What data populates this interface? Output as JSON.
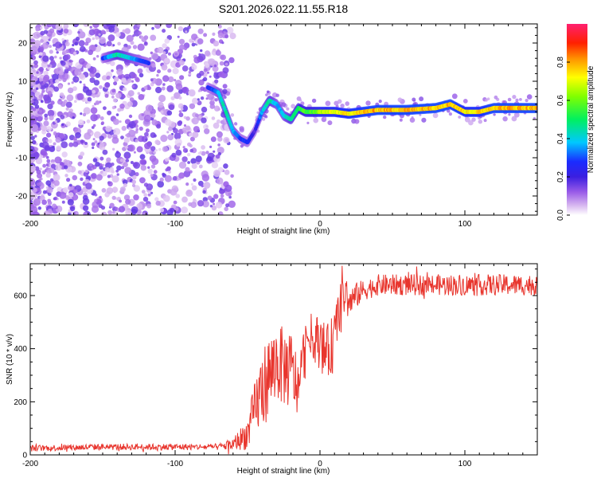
{
  "title": "S201.2026.022.11.55.R18",
  "chart_data": [
    {
      "type": "heatmap",
      "xlabel": "Height of straight line (km)",
      "ylabel": "Frequency (Hz)",
      "xlim": [
        -200,
        150
      ],
      "ylim": [
        -25,
        25
      ],
      "xticks": [
        -200,
        -100,
        0,
        100
      ],
      "xtick_labels": [
        "-200",
        "-100",
        "0",
        "100"
      ],
      "yticks": [
        -20,
        -10,
        0,
        10,
        20
      ],
      "ytick_labels": [
        "-20",
        "-10",
        "0",
        "10",
        "20"
      ],
      "colorbar": {
        "label": "Normalized spectral amplitude",
        "range": [
          0,
          1
        ],
        "ticks": [
          0.0,
          0.2,
          0.4,
          0.6,
          0.8
        ],
        "tick_labels": [
          "0.0",
          "0.2",
          "0.4",
          "0.6",
          "0.8"
        ]
      },
      "ridge": {
        "x": [
          -150,
          -140,
          -130,
          -120,
          -75,
          -70,
          -65,
          -60,
          -55,
          -50,
          -45,
          -40,
          -35,
          -30,
          -25,
          -20,
          -15,
          -10,
          -5,
          0,
          10,
          20,
          40,
          60,
          80,
          90,
          100,
          110,
          120,
          150
        ],
        "y": [
          16,
          17,
          16,
          15,
          8,
          7,
          2,
          -3,
          -5,
          -6,
          -3,
          2,
          5,
          4,
          1,
          0,
          3,
          2,
          2,
          2,
          2,
          1.5,
          2.5,
          2.5,
          3,
          4,
          2,
          2,
          3,
          3
        ],
        "amplitude": [
          0.3,
          0.5,
          0.4,
          0.3,
          0.3,
          0.4,
          0.5,
          0.4,
          0.3,
          0.3,
          0.2,
          0.4,
          0.5,
          0.4,
          0.4,
          0.5,
          0.55,
          0.6,
          0.6,
          0.7,
          0.75,
          0.8,
          0.85,
          0.85,
          0.85,
          0.85,
          0.8,
          0.8,
          0.85,
          0.85
        ]
      }
    },
    {
      "type": "line",
      "xlabel": "Height of straight line (km)",
      "ylabel": "SNR (10 * v/v)",
      "xlim": [
        -200,
        150
      ],
      "ylim": [
        0,
        720
      ],
      "xticks": [
        -200,
        -100,
        0,
        100
      ],
      "xtick_labels": [
        "-200",
        "-100",
        "0",
        "100"
      ],
      "yticks": [
        0,
        200,
        400,
        600
      ],
      "ytick_labels": [
        "0",
        "200",
        "400",
        "600"
      ],
      "series": [
        {
          "name": "SNR",
          "color": "#e8352d",
          "envelope_x": [
            -200,
            -150,
            -100,
            -70,
            -60,
            -50,
            -45,
            -40,
            -35,
            -30,
            -25,
            -20,
            -15,
            -10,
            -5,
            0,
            5,
            10,
            15,
            20,
            25,
            30,
            40,
            60,
            80,
            100,
            120,
            150
          ],
          "envelope_y": [
            25,
            30,
            30,
            30,
            40,
            80,
            170,
            250,
            300,
            350,
            330,
            320,
            250,
            420,
            450,
            420,
            380,
            430,
            620,
            570,
            600,
            620,
            640,
            640,
            640,
            640,
            640,
            640
          ],
          "noise_amp": [
            12,
            12,
            12,
            12,
            25,
            60,
            110,
            150,
            160,
            150,
            150,
            150,
            120,
            90,
            90,
            100,
            110,
            110,
            100,
            60,
            50,
            40,
            40,
            40,
            40,
            40,
            40,
            40
          ]
        }
      ]
    }
  ]
}
